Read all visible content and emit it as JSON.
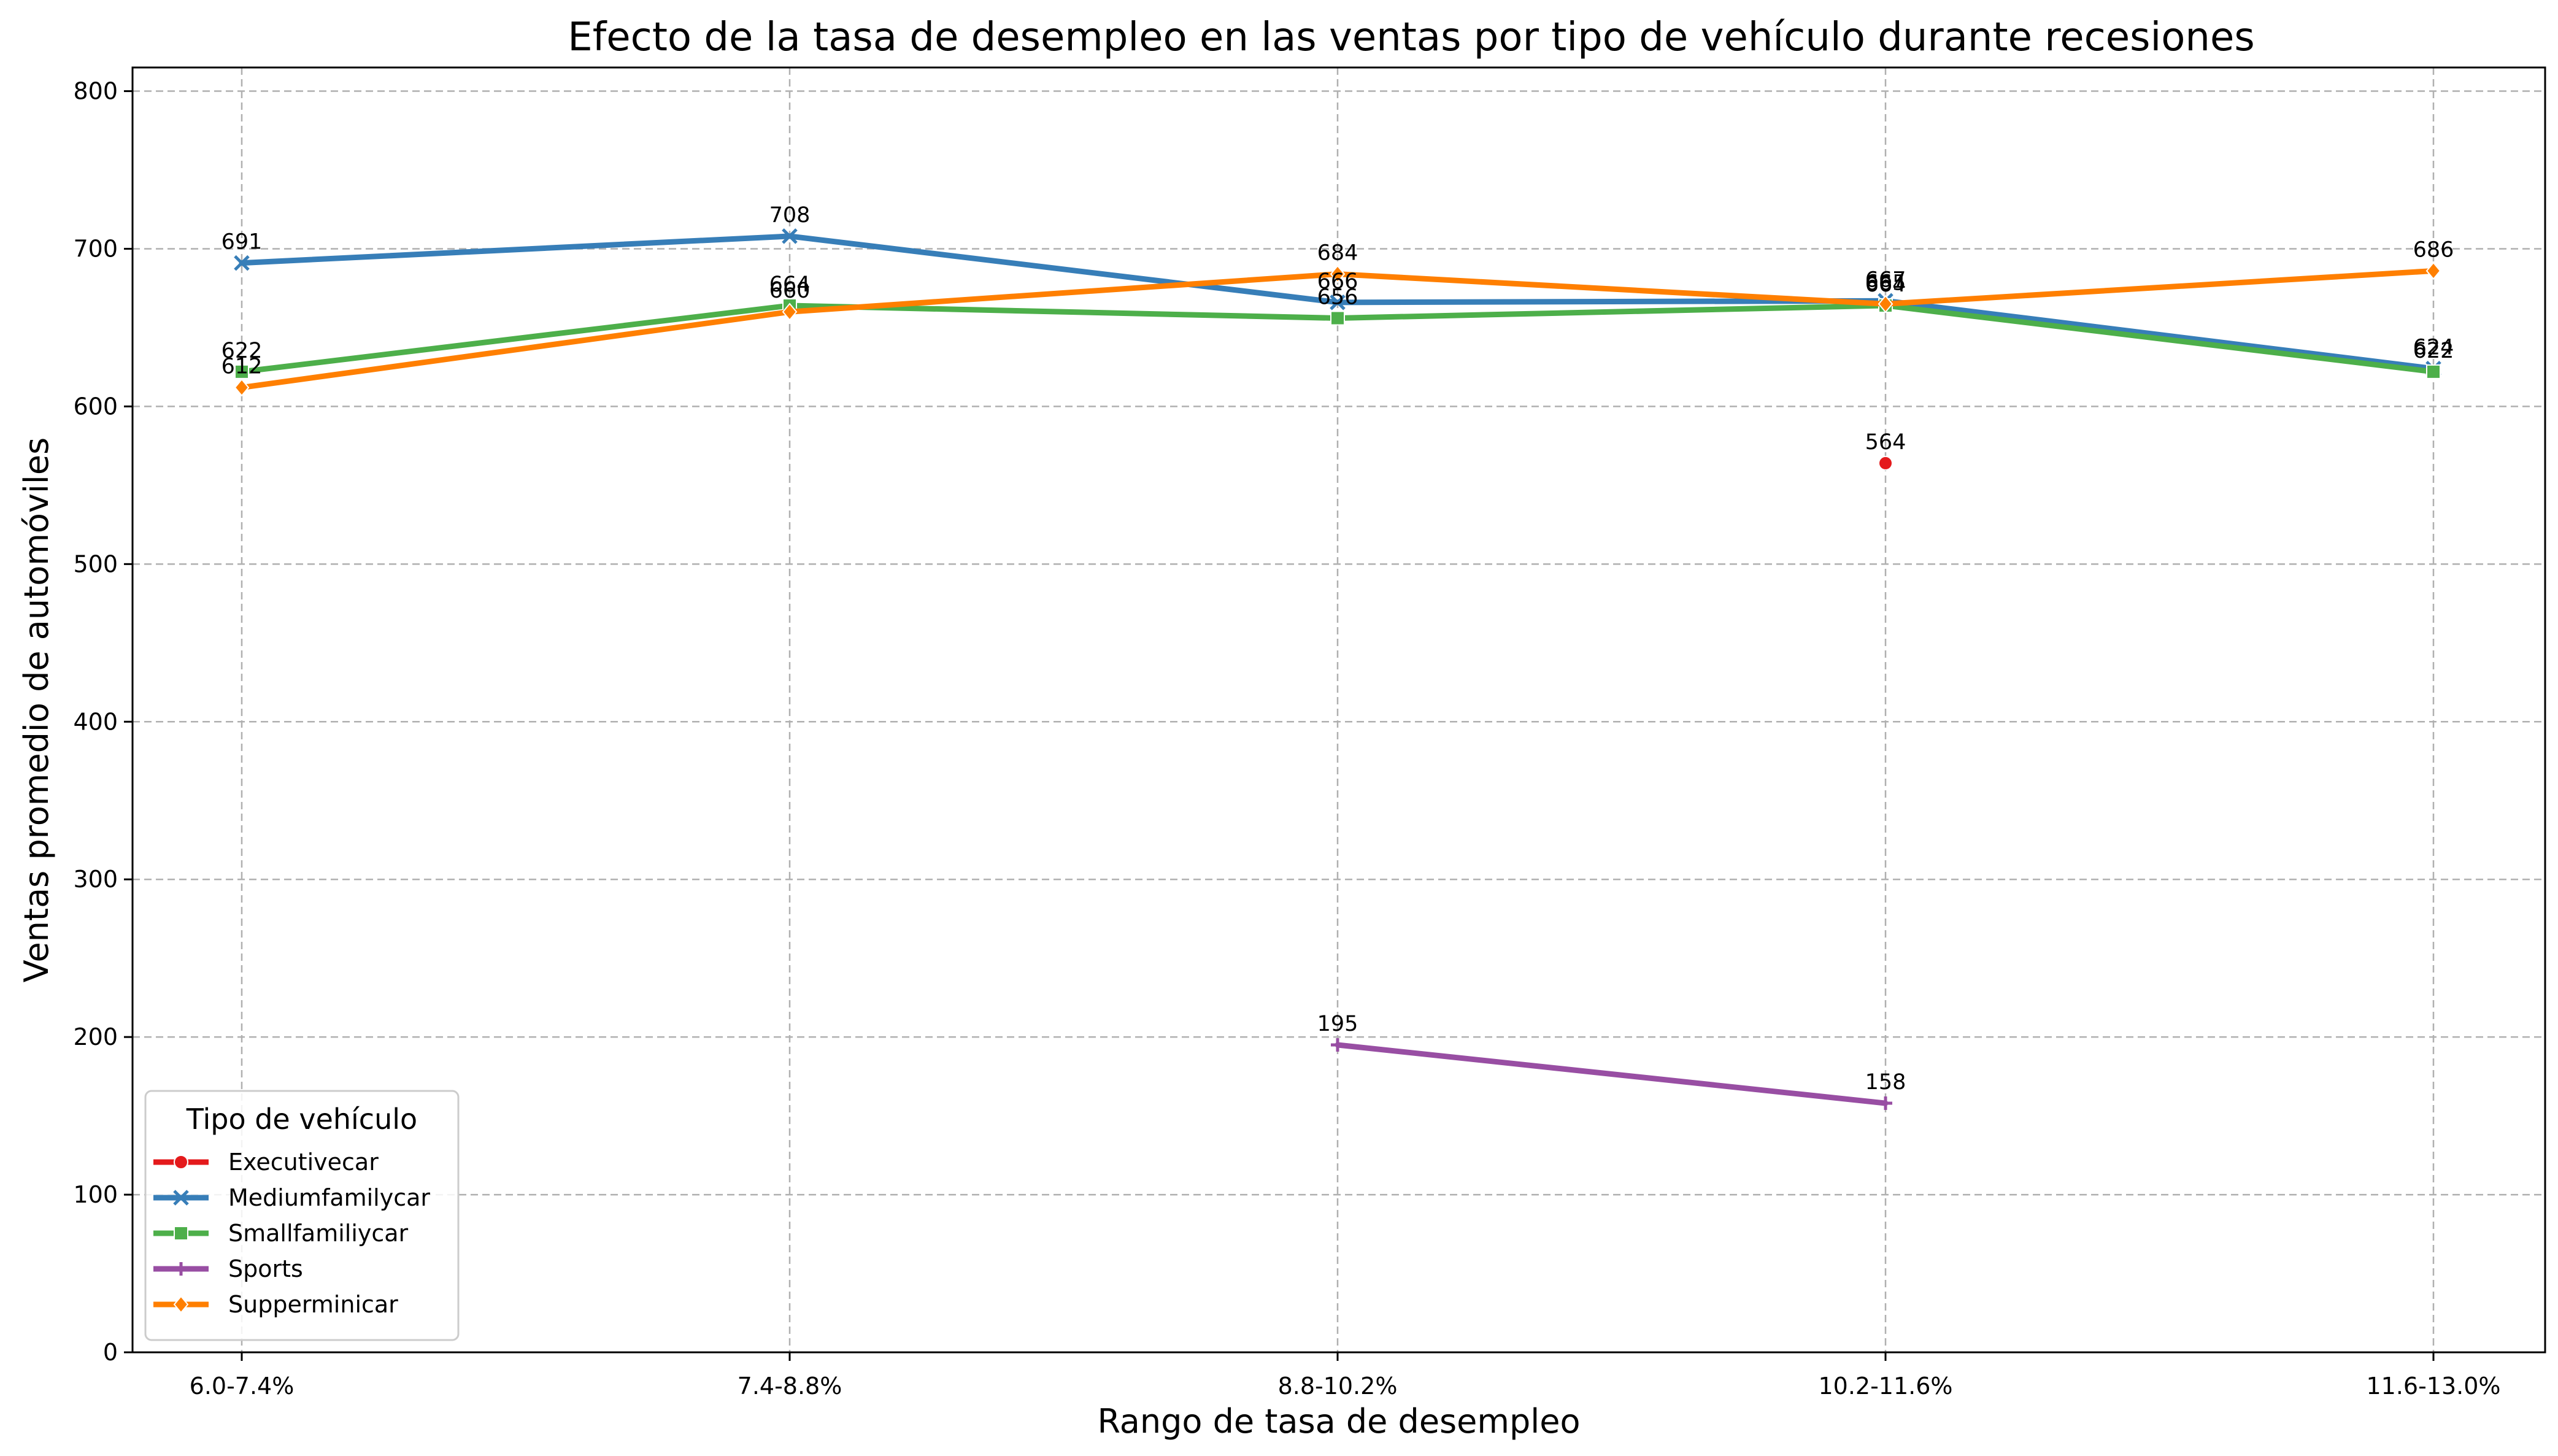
{
  "chart_data": {
    "type": "line",
    "title": "Efecto de la tasa de desempleo en las ventas por tipo de vehículo durante recesiones",
    "xlabel": "Rango de tasa de desempleo",
    "ylabel": "Ventas promedio de automóviles",
    "categories": [
      "6.0-7.4%",
      "7.4-8.8%",
      "8.8-10.2%",
      "10.2-11.6%",
      "11.6-13.0%"
    ],
    "ylim": [
      0,
      815
    ],
    "yticks": [
      0,
      100,
      200,
      300,
      400,
      500,
      600,
      700,
      800
    ],
    "grid": true,
    "legend": {
      "title": "Tipo de vehículo",
      "position": "bottom-left"
    },
    "series": [
      {
        "name": "Executivecar",
        "color": "#e41a1c",
        "marker": "circle",
        "values": [
          null,
          null,
          null,
          564,
          null
        ]
      },
      {
        "name": "Mediumfamilycar",
        "color": "#377eb8",
        "marker": "x",
        "values": [
          691,
          708,
          666,
          667,
          624
        ]
      },
      {
        "name": "Smallfamiliycar",
        "color": "#4daf4a",
        "marker": "square",
        "values": [
          622,
          664,
          656,
          664,
          622
        ]
      },
      {
        "name": "Sports",
        "color": "#984ea3",
        "marker": "plus",
        "values": [
          null,
          null,
          195,
          158,
          null
        ]
      },
      {
        "name": "Supperminicar",
        "color": "#ff7f00",
        "marker": "diamond",
        "values": [
          612,
          660,
          684,
          665,
          686
        ]
      }
    ]
  }
}
